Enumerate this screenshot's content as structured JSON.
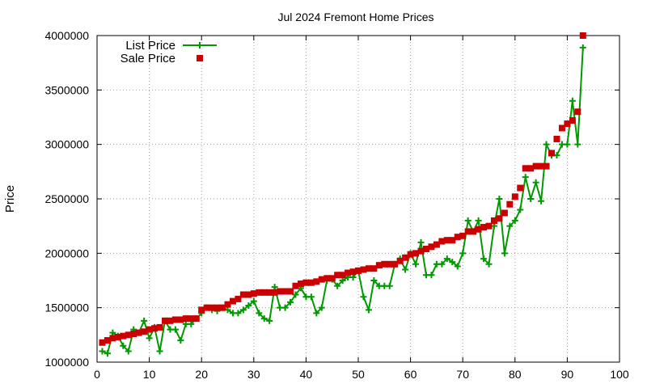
{
  "chart_data": {
    "type": "line",
    "title": "Jul 2024 Fremont Home Prices",
    "xlabel": "",
    "ylabel": "Price",
    "xlim": [
      0,
      100
    ],
    "ylim": [
      1000000,
      4000000
    ],
    "x_ticks": [
      "0",
      "10",
      "20",
      "30",
      "40",
      "50",
      "60",
      "70",
      "80",
      "90",
      "100"
    ],
    "y_ticks": [
      "1000000",
      "1500000",
      "2000000",
      "2500000",
      "3000000",
      "3500000",
      "4000000"
    ],
    "grid": true,
    "legend_position": "top-left",
    "series": [
      {
        "name": "List Price",
        "style": "linespoints",
        "color": "#009900",
        "x": [
          1,
          2,
          3,
          4,
          5,
          6,
          7,
          8,
          9,
          10,
          11,
          12,
          13,
          14,
          15,
          16,
          17,
          18,
          19,
          20,
          21,
          22,
          23,
          24,
          25,
          26,
          27,
          28,
          29,
          30,
          31,
          32,
          33,
          34,
          35,
          36,
          37,
          38,
          39,
          40,
          41,
          42,
          43,
          44,
          45,
          46,
          47,
          48,
          49,
          50,
          51,
          52,
          53,
          54,
          55,
          56,
          57,
          58,
          59,
          60,
          61,
          62,
          63,
          64,
          65,
          66,
          67,
          68,
          69,
          70,
          71,
          72,
          73,
          74,
          75,
          76,
          77,
          78,
          79,
          80,
          81,
          82,
          83,
          84,
          85,
          86,
          87,
          88,
          89,
          90,
          91,
          92,
          93
        ],
        "values": [
          1100000,
          1080000,
          1270000,
          1240000,
          1150000,
          1100000,
          1300000,
          1270000,
          1380000,
          1220000,
          1320000,
          1100000,
          1380000,
          1300000,
          1300000,
          1200000,
          1350000,
          1350000,
          1400000,
          1450000,
          1500000,
          1480000,
          1470000,
          1500000,
          1480000,
          1450000,
          1450000,
          1480000,
          1520000,
          1560000,
          1450000,
          1400000,
          1380000,
          1690000,
          1500000,
          1500000,
          1550000,
          1620000,
          1680000,
          1600000,
          1600000,
          1450000,
          1500000,
          1750000,
          1760000,
          1700000,
          1750000,
          1780000,
          1780000,
          1840000,
          1600000,
          1480000,
          1750000,
          1700000,
          1700000,
          1700000,
          1900000,
          1950000,
          1850000,
          2000000,
          1900000,
          2100000,
          1800000,
          1800000,
          1900000,
          1900000,
          1950000,
          1920000,
          1880000,
          2000000,
          2300000,
          2200000,
          2300000,
          1950000,
          1900000,
          2250000,
          2500000,
          2000000,
          2250000,
          2300000,
          2400000,
          2700000,
          2500000,
          2650000,
          2480000,
          3000000,
          2900000,
          2900000,
          3000000,
          3000000,
          3400000,
          3000000,
          3890000
        ]
      },
      {
        "name": "Sale Price",
        "style": "points",
        "color": "#cc0000",
        "x": [
          1,
          2,
          3,
          4,
          5,
          6,
          7,
          8,
          9,
          10,
          11,
          12,
          13,
          14,
          15,
          16,
          17,
          18,
          19,
          20,
          21,
          22,
          23,
          24,
          25,
          26,
          27,
          28,
          29,
          30,
          31,
          32,
          33,
          34,
          35,
          36,
          37,
          38,
          39,
          40,
          41,
          42,
          43,
          44,
          45,
          46,
          47,
          48,
          49,
          50,
          51,
          52,
          53,
          54,
          55,
          56,
          57,
          58,
          59,
          60,
          61,
          62,
          63,
          64,
          65,
          66,
          67,
          68,
          69,
          70,
          71,
          72,
          73,
          74,
          75,
          76,
          77,
          78,
          79,
          80,
          81,
          82,
          83,
          84,
          85,
          86,
          87,
          88,
          89,
          90,
          91,
          92,
          93
        ],
        "values": [
          1180000,
          1200000,
          1220000,
          1230000,
          1240000,
          1250000,
          1260000,
          1270000,
          1280000,
          1300000,
          1310000,
          1320000,
          1380000,
          1380000,
          1390000,
          1390000,
          1400000,
          1400000,
          1400000,
          1480000,
          1500000,
          1500000,
          1500000,
          1500000,
          1530000,
          1560000,
          1580000,
          1620000,
          1620000,
          1630000,
          1640000,
          1640000,
          1640000,
          1640000,
          1650000,
          1650000,
          1650000,
          1700000,
          1720000,
          1730000,
          1730000,
          1740000,
          1760000,
          1770000,
          1770000,
          1800000,
          1800000,
          1820000,
          1830000,
          1840000,
          1850000,
          1860000,
          1860000,
          1890000,
          1900000,
          1900000,
          1900000,
          1930000,
          1960000,
          1990000,
          2000000,
          2020000,
          2040000,
          2060000,
          2080000,
          2110000,
          2120000,
          2120000,
          2150000,
          2160000,
          2200000,
          2200000,
          2220000,
          2240000,
          2250000,
          2300000,
          2320000,
          2370000,
          2450000,
          2520000,
          2600000,
          2780000,
          2780000,
          2800000,
          2800000,
          2800000,
          2920000,
          3050000,
          3150000,
          3190000,
          3220000,
          3300000,
          4000000
        ]
      }
    ]
  }
}
